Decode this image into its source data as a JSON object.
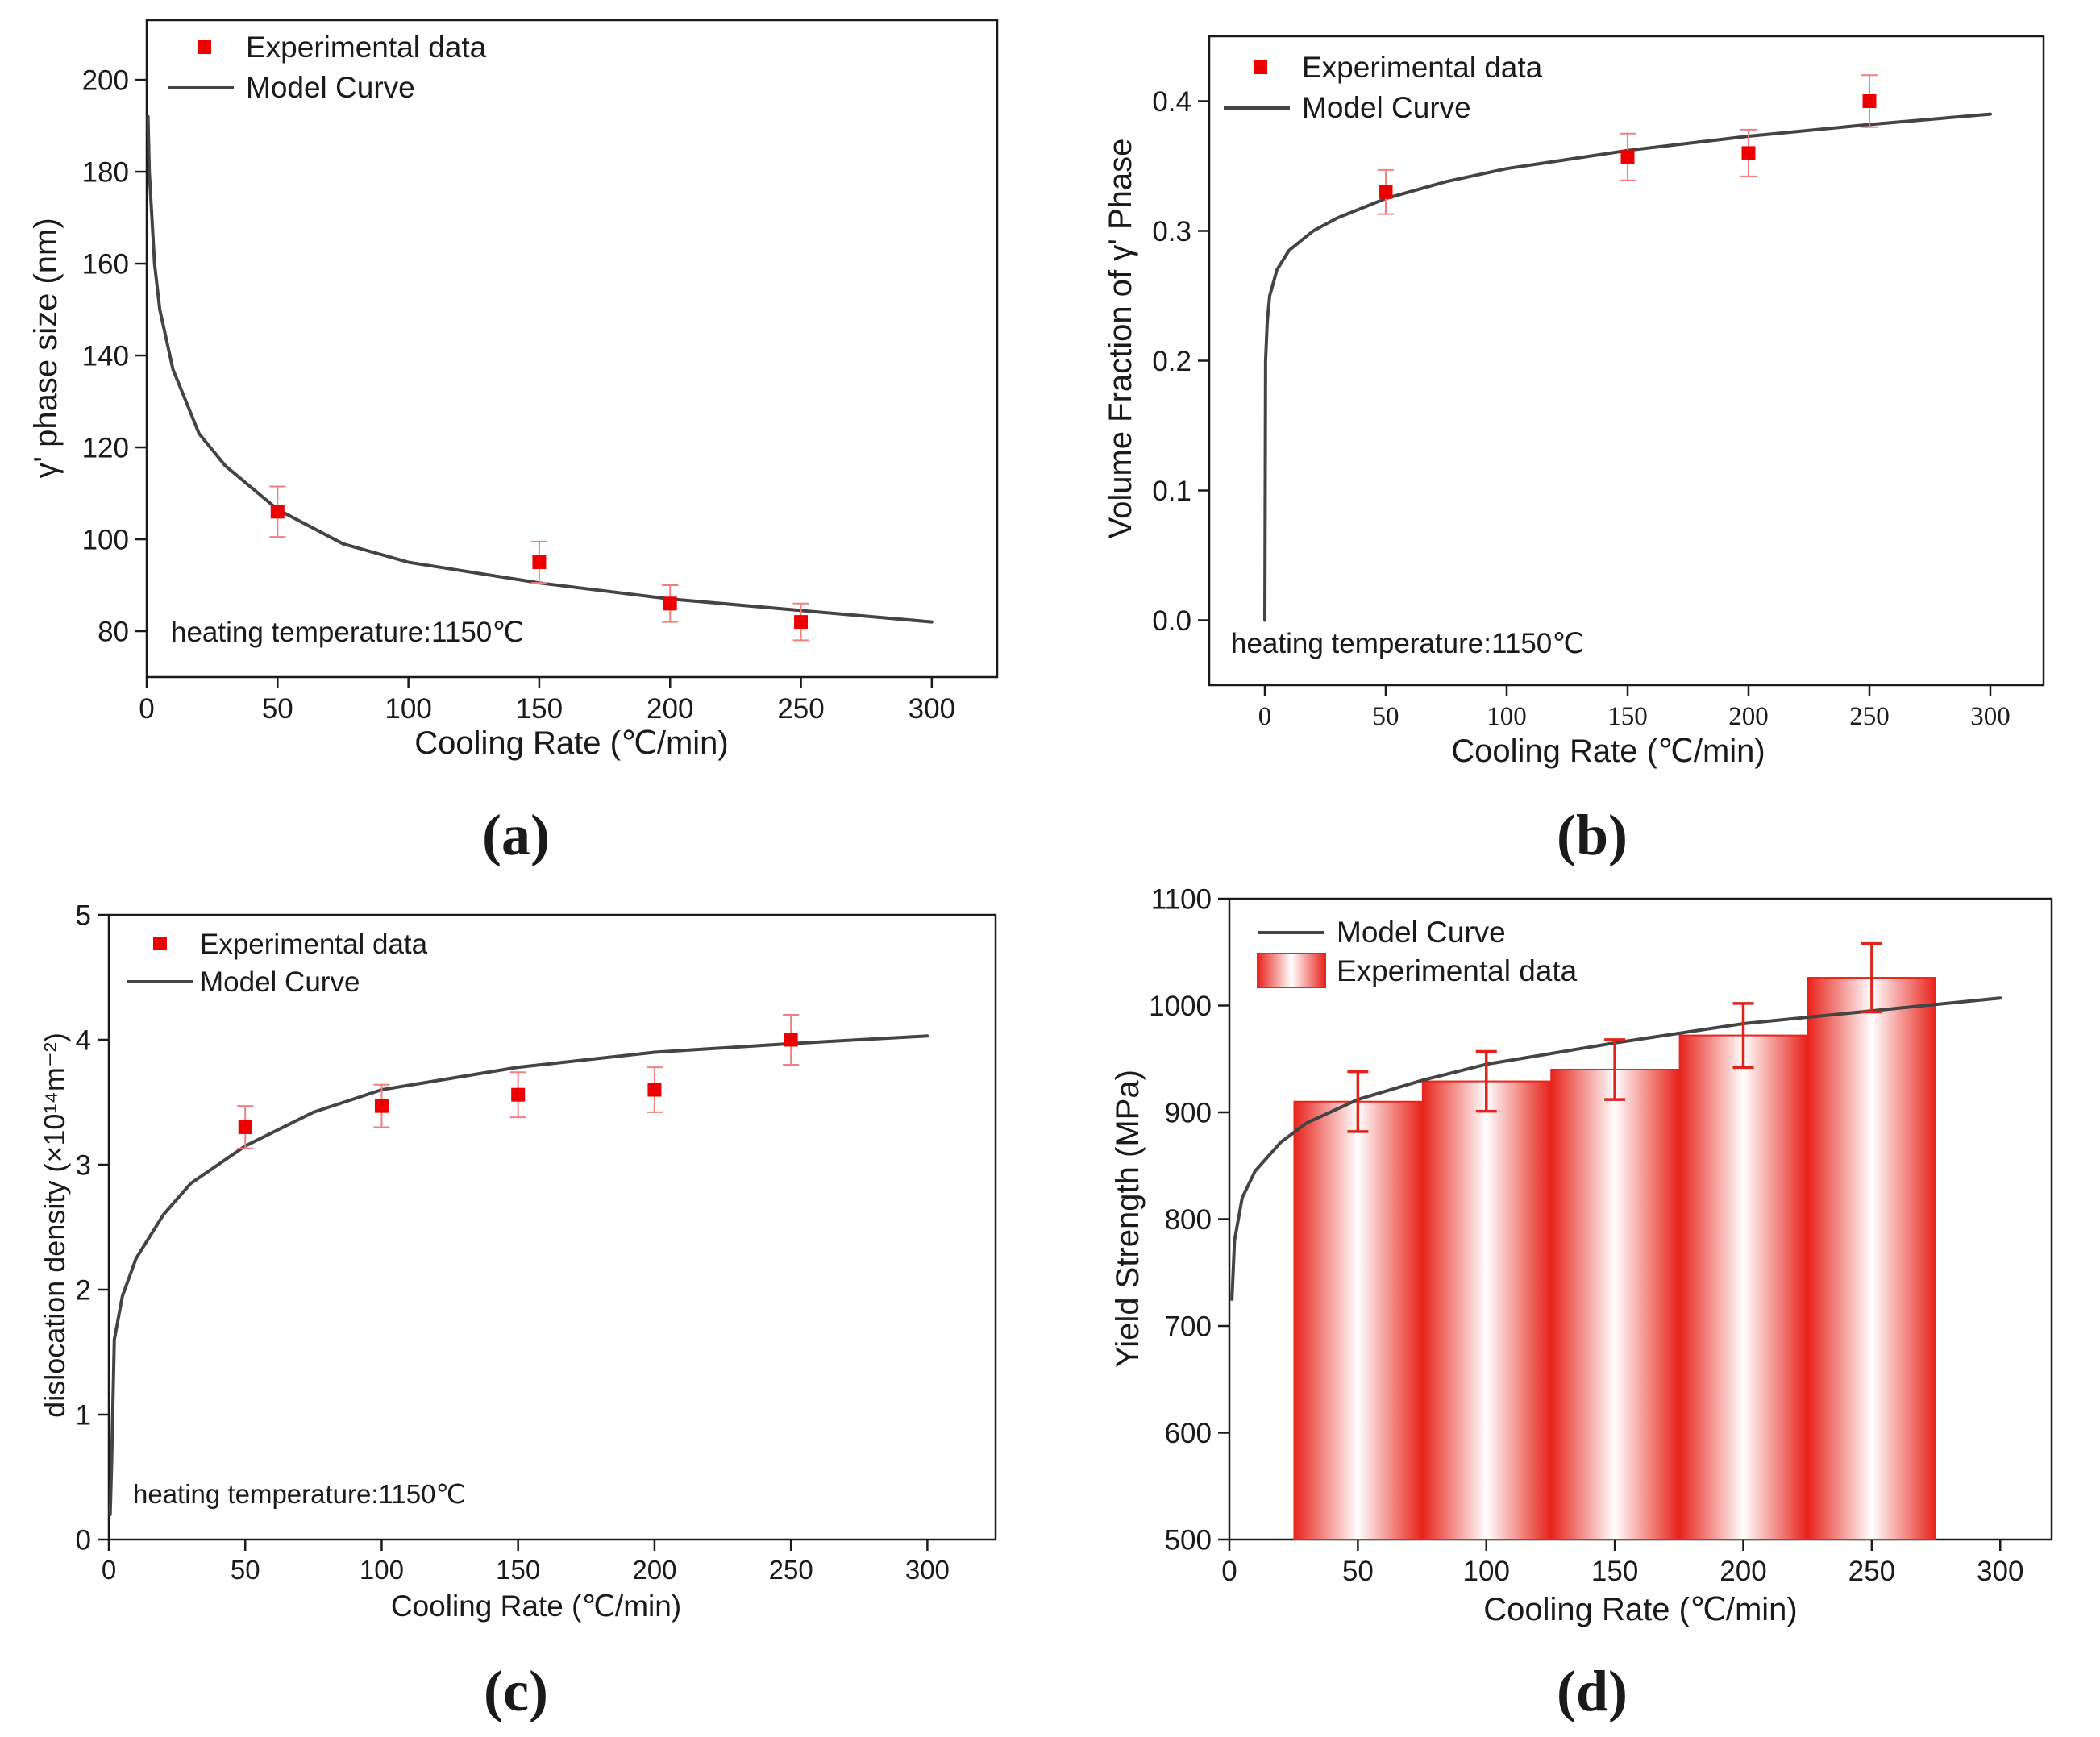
{
  "chart_data": [
    {
      "type": "line",
      "panel_label": "(a)",
      "xlabel": "Cooling Rate (℃/min)",
      "ylabel": "γ' phase size (nm)",
      "xlim": [
        0,
        325
      ],
      "ylim": [
        70,
        213
      ],
      "xticks": [
        0,
        50,
        100,
        150,
        200,
        250,
        300
      ],
      "yticks": [
        80,
        100,
        120,
        140,
        160,
        180,
        200
      ],
      "annotation": "heating temperature:1150℃",
      "legend": {
        "position": "top-left",
        "entries": [
          "Experimental data",
          "Model Curve"
        ]
      },
      "series": [
        {
          "name": "Experimental data",
          "kind": "points",
          "x": [
            50,
            150,
            200,
            250
          ],
          "y": [
            106,
            95,
            86,
            82
          ],
          "err": [
            5.5,
            4.5,
            4.0,
            4.0
          ]
        },
        {
          "name": "Model Curve",
          "kind": "curve",
          "x": [
            0.5,
            1,
            3,
            5,
            10,
            20,
            30,
            50,
            75,
            100,
            150,
            200,
            250,
            300
          ],
          "y": [
            192,
            180,
            160,
            150,
            137,
            123,
            116,
            106.5,
            99,
            95,
            90.5,
            87,
            84.5,
            82
          ]
        }
      ]
    },
    {
      "type": "line",
      "panel_label": "(b)",
      "xlabel": "Cooling Rate (℃/min)",
      "ylabel": "Volume Fraction of γ' Phase",
      "xlim": [
        -23,
        322
      ],
      "ylim": [
        -0.05,
        0.45
      ],
      "xticks": [
        0,
        50,
        100,
        150,
        200,
        250,
        300
      ],
      "yticks": [
        0.0,
        0.1,
        0.2,
        0.3,
        0.4
      ],
      "ytick_labels": [
        "0.0",
        "0.1",
        "0.2",
        "0.3",
        "0.4"
      ],
      "annotation": "heating temperature:1150℃",
      "legend": {
        "position": "top-left",
        "entries": [
          "Experimental data",
          "Model Curve"
        ]
      },
      "series": [
        {
          "name": "Experimental data",
          "kind": "points",
          "x": [
            50,
            150,
            200,
            250
          ],
          "y": [
            0.33,
            0.357,
            0.36,
            0.4
          ],
          "err": [
            0.017,
            0.018,
            0.018,
            0.02
          ]
        },
        {
          "name": "Model Curve",
          "kind": "curve",
          "x": [
            0,
            0.3,
            1,
            2,
            5,
            10,
            20,
            30,
            50,
            75,
            100,
            150,
            200,
            250,
            300
          ],
          "y": [
            0.0,
            0.2,
            0.23,
            0.25,
            0.27,
            0.285,
            0.3,
            0.31,
            0.325,
            0.338,
            0.348,
            0.362,
            0.373,
            0.382,
            0.39
          ]
        }
      ]
    },
    {
      "type": "line",
      "panel_label": "(c)",
      "xlabel": "Cooling Rate (℃/min)",
      "ylabel": "dislocation density (×10¹⁴m⁻²)",
      "xlim": [
        0,
        325
      ],
      "ylim": [
        0,
        5
      ],
      "xticks": [
        0,
        50,
        100,
        150,
        200,
        250,
        300
      ],
      "yticks": [
        0,
        1,
        2,
        3,
        4,
        5
      ],
      "annotation": "heating temperature:1150℃",
      "legend": {
        "position": "top-left",
        "entries": [
          "Experimental data",
          "Model Curve"
        ]
      },
      "series": [
        {
          "name": "Experimental data",
          "kind": "points",
          "x": [
            50,
            100,
            150,
            200,
            250
          ],
          "y": [
            3.3,
            3.47,
            3.56,
            3.6,
            4.0
          ],
          "err": [
            0.17,
            0.17,
            0.18,
            0.18,
            0.2
          ]
        },
        {
          "name": "Model Curve",
          "kind": "curve",
          "x": [
            0.5,
            1,
            2,
            5,
            10,
            20,
            30,
            50,
            75,
            100,
            150,
            200,
            250,
            300
          ],
          "y": [
            0.2,
            0.6,
            1.6,
            1.95,
            2.25,
            2.6,
            2.85,
            3.15,
            3.42,
            3.6,
            3.78,
            3.9,
            3.97,
            4.03
          ]
        }
      ]
    },
    {
      "type": "bar",
      "panel_label": "(d)",
      "xlabel": "Cooling Rate (℃/min)",
      "ylabel": "Yield Strength (MPa)",
      "xlim": [
        0,
        320
      ],
      "ylim": [
        500,
        1100
      ],
      "xticks": [
        0,
        50,
        100,
        150,
        200,
        250,
        300
      ],
      "yticks": [
        500,
        600,
        700,
        800,
        900,
        1000,
        1100
      ],
      "legend": {
        "position": "top-left",
        "entries": [
          "Model Curve",
          "Experimental data"
        ]
      },
      "series": [
        {
          "name": "Model Curve",
          "kind": "curve",
          "x": [
            1,
            2,
            5,
            10,
            20,
            30,
            50,
            75,
            100,
            150,
            200,
            250,
            300
          ],
          "y": [
            725,
            780,
            820,
            845,
            872,
            890,
            912,
            930,
            945,
            965,
            983,
            995,
            1007
          ]
        },
        {
          "name": "Experimental data",
          "kind": "bars",
          "x": [
            50,
            100,
            150,
            200,
            250
          ],
          "y": [
            910,
            929,
            940,
            972,
            1026
          ],
          "err": [
            28,
            28,
            28,
            30,
            32
          ]
        }
      ]
    }
  ]
}
